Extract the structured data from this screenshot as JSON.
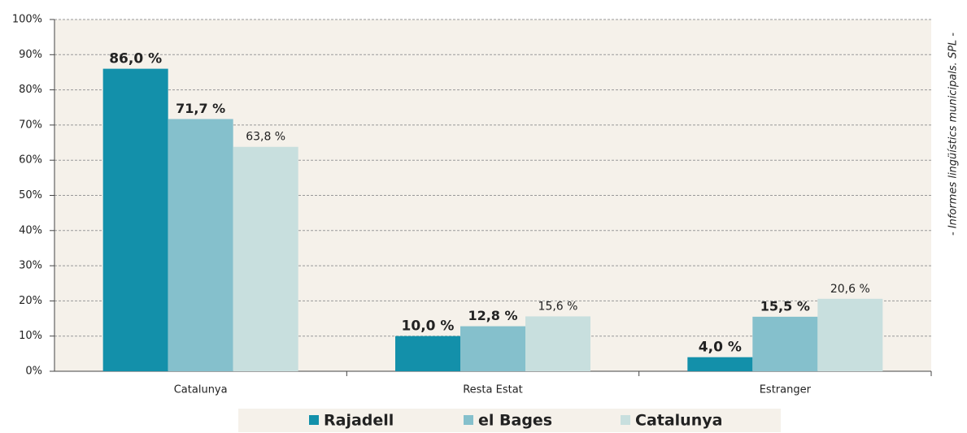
{
  "chart_data": {
    "type": "bar",
    "annotation": "- Informes lingüístics municipals. SPL -",
    "categories": [
      "Catalunya",
      "Resta Estat",
      "Estranger"
    ],
    "series": [
      {
        "name": "Rajadell",
        "color": "#1390aa",
        "values": [
          86.0,
          10.0,
          4.0
        ],
        "value_labels": [
          "86,0 %",
          "10,0 %",
          "4,0 %"
        ]
      },
      {
        "name": "el Bages",
        "color": "#85c0cc",
        "values": [
          71.7,
          12.8,
          15.5
        ],
        "value_labels": [
          "71,7 %",
          "12,8 %",
          "15,5 %"
        ]
      },
      {
        "name": "Catalunya",
        "color": "#c8dfde",
        "values": [
          63.8,
          15.6,
          20.6
        ],
        "value_labels": [
          "63,8 %",
          "15,6 %",
          "20,6 %"
        ]
      }
    ],
    "ylim": [
      0,
      100
    ],
    "yticks": [
      {
        "value": 0,
        "label": "0%"
      },
      {
        "value": 10,
        "label": "10%"
      },
      {
        "value": 20,
        "label": "20%"
      },
      {
        "value": 30,
        "label": "30%"
      },
      {
        "value": 40,
        "label": "40%"
      },
      {
        "value": 50,
        "label": "50%"
      },
      {
        "value": 60,
        "label": "60%"
      },
      {
        "value": 70,
        "label": "70%"
      },
      {
        "value": 80,
        "label": "80%"
      },
      {
        "value": 90,
        "label": "90%"
      },
      {
        "value": 100,
        "label": "100%"
      }
    ],
    "grid": true
  }
}
